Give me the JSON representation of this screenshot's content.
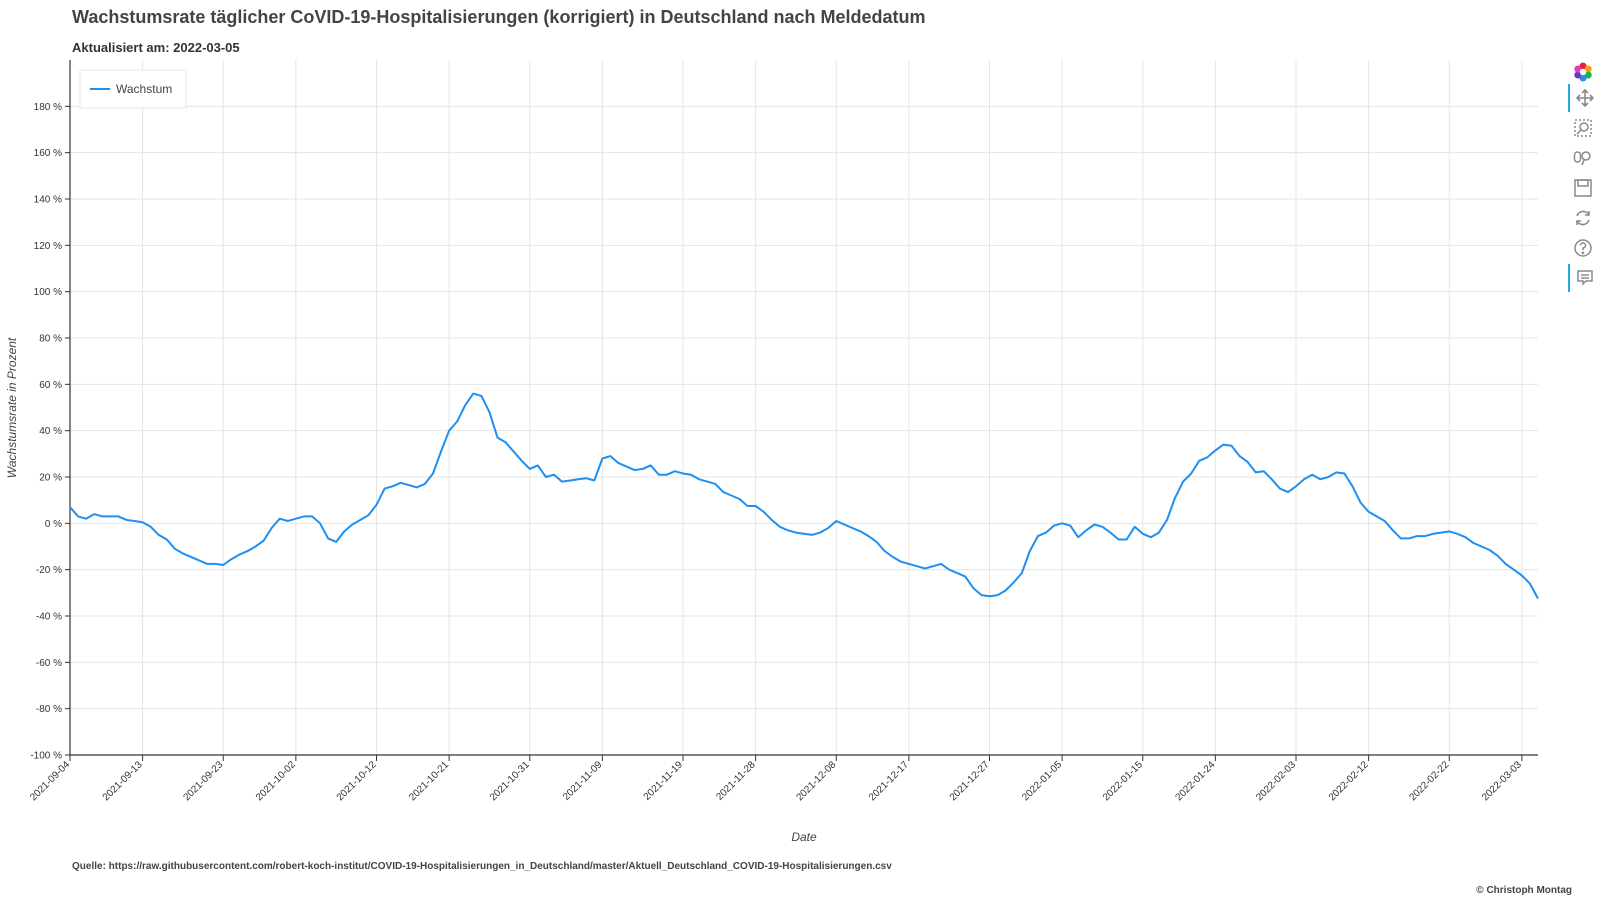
{
  "header": {
    "title": "Wachstumsrate täglicher CoVID-19-Hospitalisierungen (korrigiert) in Deutschland nach Meldedatum",
    "subtitle": "Aktualisiert am: 2022-03-05"
  },
  "footer": {
    "source": "Quelle: https://raw.githubusercontent.com/robert-koch-institut/COVID-19-Hospitalisierungen_in_Deutschland/master/Aktuell_Deutschland_COVID-19-Hospitalisierungen.csv",
    "copyright": "© Christoph Montag"
  },
  "toolbar": {
    "tools": [
      {
        "name": "bokeh-logo-icon",
        "active": false
      },
      {
        "name": "pan-tool-icon",
        "active": true
      },
      {
        "name": "box-zoom-tool-icon",
        "active": false
      },
      {
        "name": "wheel-zoom-tool-icon",
        "active": false
      },
      {
        "name": "save-tool-icon",
        "active": false
      },
      {
        "name": "reset-tool-icon",
        "active": false
      },
      {
        "name": "help-tool-icon",
        "active": false
      },
      {
        "name": "hover-tool-icon",
        "active": true
      }
    ]
  },
  "chart_data": {
    "type": "line",
    "xlabel": "Date",
    "ylabel": "Wachstumsrate in Prozent",
    "ylim": [
      -100,
      200
    ],
    "yticks": [
      -100,
      -80,
      -60,
      -40,
      -20,
      0,
      20,
      40,
      60,
      80,
      100,
      120,
      140,
      160,
      180
    ],
    "ytick_labels": [
      "-100 %",
      "-80 %",
      "-60 %",
      "-40 %",
      "-20 %",
      "0 %",
      "20 %",
      "40 %",
      "60 %",
      "80 %",
      "100 %",
      "120 %",
      "140 %",
      "160 %",
      "180 %"
    ],
    "xlim": [
      "2021-09-04",
      "2022-03-05"
    ],
    "xticks": [
      "2021-09-04",
      "2021-09-13",
      "2021-09-23",
      "2021-10-02",
      "2021-10-12",
      "2021-10-21",
      "2021-10-31",
      "2021-11-09",
      "2021-11-19",
      "2021-11-28",
      "2021-12-08",
      "2021-12-17",
      "2021-12-27",
      "2022-01-05",
      "2022-01-15",
      "2022-01-24",
      "2022-02-03",
      "2022-02-12",
      "2022-02-22",
      "2022-03-03"
    ],
    "grid": true,
    "legend_position": "top-left",
    "series": [
      {
        "name": "Wachstum",
        "color": "#1f8ff0",
        "x": [
          "2021-09-04",
          "2021-09-05",
          "2021-09-06",
          "2021-09-07",
          "2021-09-08",
          "2021-09-09",
          "2021-09-10",
          "2021-09-11",
          "2021-09-12",
          "2021-09-13",
          "2021-09-14",
          "2021-09-15",
          "2021-09-16",
          "2021-09-17",
          "2021-09-18",
          "2021-09-19",
          "2021-09-20",
          "2021-09-21",
          "2021-09-22",
          "2021-09-23",
          "2021-09-24",
          "2021-09-25",
          "2021-09-26",
          "2021-09-27",
          "2021-09-28",
          "2021-09-29",
          "2021-09-30",
          "2021-10-01",
          "2021-10-02",
          "2021-10-03",
          "2021-10-04",
          "2021-10-05",
          "2021-10-06",
          "2021-10-07",
          "2021-10-08",
          "2021-10-09",
          "2021-10-10",
          "2021-10-11",
          "2021-10-12",
          "2021-10-13",
          "2021-10-14",
          "2021-10-15",
          "2021-10-16",
          "2021-10-17",
          "2021-10-18",
          "2021-10-19",
          "2021-10-20",
          "2021-10-21",
          "2021-10-22",
          "2021-10-23",
          "2021-10-24",
          "2021-10-25",
          "2021-10-26",
          "2021-10-27",
          "2021-10-28",
          "2021-10-29",
          "2021-10-30",
          "2021-10-31",
          "2021-11-01",
          "2021-11-02",
          "2021-11-03",
          "2021-11-04",
          "2021-11-05",
          "2021-11-06",
          "2021-11-07",
          "2021-11-08",
          "2021-11-09",
          "2021-11-10",
          "2021-11-11",
          "2021-11-12",
          "2021-11-13",
          "2021-11-14",
          "2021-11-15",
          "2021-11-16",
          "2021-11-17",
          "2021-11-18",
          "2021-11-19",
          "2021-11-20",
          "2021-11-21",
          "2021-11-22",
          "2021-11-23",
          "2021-11-24",
          "2021-11-25",
          "2021-11-26",
          "2021-11-27",
          "2021-11-28",
          "2021-11-29",
          "2021-11-30",
          "2021-12-01",
          "2021-12-02",
          "2021-12-03",
          "2021-12-04",
          "2021-12-05",
          "2021-12-06",
          "2021-12-07",
          "2021-12-08",
          "2021-12-09",
          "2021-12-10",
          "2021-12-11",
          "2021-12-12",
          "2021-12-13",
          "2021-12-14",
          "2021-12-15",
          "2021-12-16",
          "2021-12-17",
          "2021-12-18",
          "2021-12-19",
          "2021-12-20",
          "2021-12-21",
          "2021-12-22",
          "2021-12-23",
          "2021-12-24",
          "2021-12-25",
          "2021-12-26",
          "2021-12-27",
          "2021-12-28",
          "2021-12-29",
          "2021-12-30",
          "2021-12-31",
          "2022-01-01",
          "2022-01-02",
          "2022-01-03",
          "2022-01-04",
          "2022-01-05",
          "2022-01-06",
          "2022-01-07",
          "2022-01-08",
          "2022-01-09",
          "2022-01-10",
          "2022-01-11",
          "2022-01-12",
          "2022-01-13",
          "2022-01-14",
          "2022-01-15",
          "2022-01-16",
          "2022-01-17",
          "2022-01-18",
          "2022-01-19",
          "2022-01-20",
          "2022-01-21",
          "2022-01-22",
          "2022-01-23",
          "2022-01-24",
          "2022-01-25",
          "2022-01-26",
          "2022-01-27",
          "2022-01-28",
          "2022-01-29",
          "2022-01-30",
          "2022-01-31",
          "2022-02-01",
          "2022-02-02",
          "2022-02-03",
          "2022-02-04",
          "2022-02-05",
          "2022-02-06",
          "2022-02-07",
          "2022-02-08",
          "2022-02-09",
          "2022-02-10",
          "2022-02-11",
          "2022-02-12",
          "2022-02-13",
          "2022-02-14",
          "2022-02-15",
          "2022-02-16",
          "2022-02-17",
          "2022-02-18",
          "2022-02-19",
          "2022-02-20",
          "2022-02-21",
          "2022-02-22",
          "2022-02-23",
          "2022-02-24",
          "2022-02-25",
          "2022-02-26",
          "2022-02-27",
          "2022-02-28",
          "2022-03-01",
          "2022-03-02",
          "2022-03-03",
          "2022-03-04",
          "2022-03-05"
        ],
        "y": [
          7,
          3,
          2,
          4,
          3,
          3,
          3,
          1.5,
          1,
          0.5,
          -1.5,
          -5,
          -7,
          -11,
          -13,
          -14.5,
          -16,
          -17.5,
          -17.5,
          -18,
          -15.5,
          -13.5,
          -12,
          -10,
          -7.5,
          -2,
          2,
          1,
          2,
          3,
          3,
          0,
          -6.5,
          -8,
          -3.5,
          -0.5,
          1.5,
          3.5,
          8,
          15,
          16,
          17.5,
          16.5,
          15.5,
          17,
          21.5,
          31,
          40,
          44,
          51,
          56,
          55,
          48,
          37,
          35,
          31,
          27,
          23.5,
          25,
          20,
          21,
          18,
          18.5,
          19,
          19.5,
          18.5,
          28,
          29,
          26,
          24.5,
          23,
          23.5,
          25,
          21,
          21,
          22.5,
          21.5,
          21,
          19,
          18,
          17,
          13.5,
          12,
          10.5,
          7.5,
          7.5,
          5,
          1.5,
          -1.5,
          -3,
          -4,
          -4.5,
          -5,
          -4,
          -2,
          1,
          -0.5,
          -2,
          -3.5,
          -5.5,
          -8,
          -12,
          -14.5,
          -16.5,
          -17.5,
          -18.5,
          -19.5,
          -18.5,
          -17.5,
          -20,
          -21.5,
          -23,
          -28,
          -31,
          -31.5,
          -31,
          -29,
          -25.5,
          -21.5,
          -12,
          -5.5,
          -4,
          -1,
          0,
          -1,
          -6,
          -3,
          -0.5,
          -1.5,
          -4,
          -7,
          -7,
          -1.5,
          -4.5,
          -6,
          -4,
          1.5,
          11,
          18,
          21.5,
          27,
          28.5,
          31.5,
          34,
          33.5,
          29,
          26.5,
          22,
          22.5,
          19,
          15,
          13.5,
          16,
          19,
          21,
          19,
          20,
          22,
          21.5,
          16,
          9,
          5,
          3,
          1,
          -3,
          -6.5,
          -6.5,
          -5.5,
          -5.5,
          -4.5,
          -4,
          -3.5,
          -4.5,
          -6,
          -8.5,
          -10,
          -11.5,
          -14,
          -17.5,
          -20,
          -22.5,
          -26,
          -32.5
        ]
      }
    ]
  }
}
